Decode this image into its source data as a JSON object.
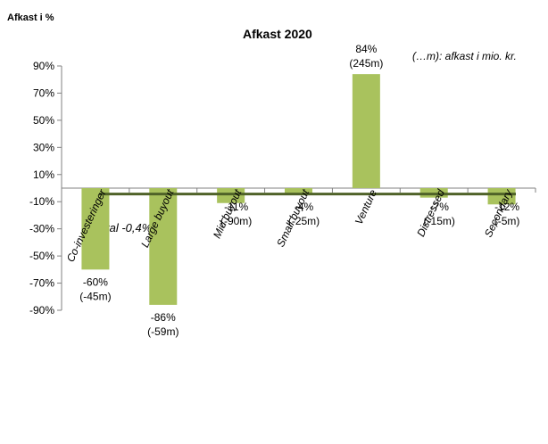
{
  "chart_data": {
    "type": "bar",
    "title": "Afkast 2020",
    "ylabel": "Afkast i %",
    "note": "(…m): afkast i mio. kr.",
    "ylim": [
      -90,
      90
    ],
    "yticks": [
      "90%",
      "70%",
      "50%",
      "30%",
      "10%",
      "-10%",
      "-30%",
      "-50%",
      "-70%",
      "-90%"
    ],
    "categories": [
      "Co-investeringer",
      "Large buyout",
      "Mid buyout",
      "Small buyout",
      "Venture",
      "Distressed",
      "Secondary"
    ],
    "values": [
      -60,
      -86,
      -11,
      -4,
      84,
      -7,
      -12
    ],
    "value_labels": [
      "-60%",
      "-86%",
      "-11%",
      "-4%",
      "84%",
      "-7%",
      "-12%"
    ],
    "amount_labels": [
      "(-45m)",
      "(-59m)",
      "(-90m)",
      "(-25m)",
      "(245m)",
      "(-15m)",
      "(-5m)"
    ],
    "total": {
      "label": "Total -0,4%",
      "value": -0.4
    },
    "grid": false,
    "legend": "none",
    "colors": {
      "bar": "#a9c25d",
      "total_line": "#4f6228",
      "axis": "#808080"
    }
  }
}
